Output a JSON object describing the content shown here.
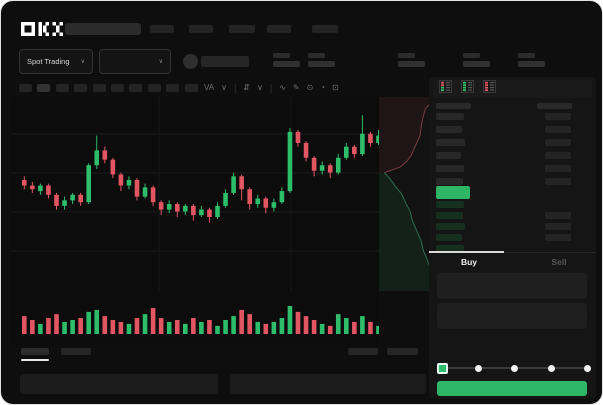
{
  "header": {
    "logo_text": "OKX",
    "nav_placeholders": [
      24,
      24,
      26,
      24,
      26
    ],
    "ticker_groups": 5
  },
  "market_selector": {
    "label": "Spot Trading",
    "chevron": "∨"
  },
  "pair_selector": {
    "chevron": "∨"
  },
  "chart_toolbar": {
    "interval_count": 10,
    "active_interval_index": 1,
    "icons": [
      {
        "name": "indicator-label",
        "glyph": "VA"
      },
      {
        "name": "chevron-down-icon",
        "glyph": "∨"
      },
      {
        "name": "toolbar-divider",
        "glyph": "|"
      },
      {
        "name": "compare-icon",
        "glyph": "⇵"
      },
      {
        "name": "chevron-down-icon",
        "glyph": "∨"
      },
      {
        "name": "toolbar-divider",
        "glyph": "|"
      },
      {
        "name": "line-type-icon",
        "glyph": "∿"
      },
      {
        "name": "draw-icon",
        "glyph": "✎"
      },
      {
        "name": "camera-icon",
        "glyph": "⊙"
      },
      {
        "name": "history-icon",
        "glyph": "◔"
      },
      {
        "name": "fullscreen-icon",
        "glyph": "⊡"
      }
    ]
  },
  "orderbook": {
    "view_modes": [
      {
        "name": "orderbook-combined-icon",
        "segments": [
          "down",
          "down",
          "up",
          "up"
        ]
      },
      {
        "name": "orderbook-bids-icon",
        "segments": [
          "up",
          "up",
          "up",
          "up"
        ]
      },
      {
        "name": "orderbook-asks-icon",
        "segments": [
          "down",
          "down",
          "down",
          "down"
        ]
      }
    ],
    "header_bars": {
      "left_width": 35,
      "right_width": 35
    },
    "asks": [
      {
        "l": 28,
        "r": 26
      },
      {
        "l": 26,
        "r": 26
      },
      {
        "l": 29,
        "r": 26
      },
      {
        "l": 25,
        "r": 26
      },
      {
        "l": 28,
        "r": 26
      },
      {
        "l": 27,
        "r": 26
      }
    ],
    "last_price_bar": {
      "color": "#2fb566",
      "width": 34
    },
    "bids": [
      {
        "l": 28,
        "r": 0
      },
      {
        "l": 27,
        "r": 26
      },
      {
        "l": 29,
        "r": 26
      },
      {
        "l": 26,
        "r": 26
      },
      {
        "l": 28,
        "r": 0
      }
    ]
  },
  "trade_panel": {
    "tabs": {
      "buy": "Buy",
      "sell": "Sell",
      "active": "buy"
    },
    "input_boxes": 2,
    "slider": {
      "stops": 5,
      "active_index": 0
    },
    "buy_button_color": "#2fb566"
  },
  "colors": {
    "up": "#2ebd6b",
    "down": "#e25563",
    "up_dim": "#16301f",
    "bar_gray": "#282828",
    "bar_gray2": "#242424"
  },
  "chart_data": {
    "type": "candlestick",
    "title": "",
    "xlabel": "",
    "ylabel": "",
    "grid": true,
    "axis_labels_visible": false,
    "price_scale": [
      0,
      100
    ],
    "candles": [
      [
        60,
        62,
        55,
        57
      ],
      [
        57,
        59,
        53,
        55
      ],
      [
        54,
        58,
        52,
        57
      ],
      [
        57,
        58,
        50,
        52
      ],
      [
        52,
        53,
        44,
        46
      ],
      [
        46,
        51,
        44,
        49
      ],
      [
        49,
        53,
        47,
        52
      ],
      [
        52,
        53,
        46,
        48
      ],
      [
        48,
        69,
        47,
        68
      ],
      [
        68,
        84,
        66,
        76
      ],
      [
        76,
        78,
        69,
        71
      ],
      [
        71,
        72,
        61,
        63
      ],
      [
        63,
        64,
        54,
        57
      ],
      [
        57,
        62,
        55,
        60
      ],
      [
        60,
        61,
        49,
        51
      ],
      [
        51,
        58,
        50,
        56
      ],
      [
        56,
        57,
        46,
        48
      ],
      [
        48,
        49,
        41,
        44
      ],
      [
        44,
        49,
        42,
        47
      ],
      [
        47,
        48,
        40,
        43
      ],
      [
        43,
        47,
        41,
        46
      ],
      [
        46,
        47,
        38,
        41
      ],
      [
        41,
        46,
        40,
        44
      ],
      [
        44,
        45,
        37,
        40
      ],
      [
        40,
        48,
        39,
        46
      ],
      [
        46,
        55,
        45,
        53
      ],
      [
        53,
        64,
        52,
        62
      ],
      [
        62,
        63,
        49,
        55
      ],
      [
        55,
        56,
        44,
        47
      ],
      [
        47,
        52,
        45,
        50
      ],
      [
        50,
        51,
        42,
        45
      ],
      [
        45,
        50,
        43,
        48
      ],
      [
        48,
        56,
        47,
        54
      ],
      [
        54,
        88,
        53,
        86
      ],
      [
        86,
        87,
        78,
        80
      ],
      [
        80,
        81,
        70,
        72
      ],
      [
        72,
        73,
        62,
        65
      ],
      [
        65,
        70,
        63,
        68
      ],
      [
        68,
        69,
        61,
        64
      ],
      [
        64,
        74,
        63,
        72
      ],
      [
        72,
        80,
        71,
        78
      ],
      [
        78,
        79,
        72,
        74
      ],
      [
        74,
        95,
        73,
        85
      ],
      [
        85,
        86,
        78,
        80
      ],
      [
        80,
        87,
        79,
        84
      ]
    ],
    "candle_format": "[open, high, low, close]",
    "volume": [
      64,
      50,
      36,
      57,
      71,
      43,
      50,
      57,
      79,
      86,
      64,
      50,
      43,
      36,
      57,
      71,
      93,
      57,
      43,
      50,
      36,
      57,
      43,
      50,
      29,
      50,
      64,
      86,
      71,
      43,
      36,
      43,
      57,
      100,
      79,
      64,
      50,
      36,
      29,
      71,
      57,
      43,
      64,
      43,
      29
    ],
    "depth": {
      "asks_points": [
        [
          100,
          2
        ],
        [
          86,
          6
        ],
        [
          80,
          12
        ],
        [
          76,
          20
        ],
        [
          66,
          26
        ],
        [
          60,
          30
        ],
        [
          52,
          33
        ],
        [
          40,
          36
        ],
        [
          10,
          39
        ]
      ],
      "bids_points": [
        [
          10,
          39
        ],
        [
          20,
          42
        ],
        [
          30,
          46
        ],
        [
          42,
          50
        ],
        [
          50,
          55
        ],
        [
          58,
          59
        ],
        [
          62,
          64
        ],
        [
          70,
          69
        ],
        [
          78,
          74
        ],
        [
          82,
          79
        ],
        [
          88,
          83
        ],
        [
          100,
          92
        ]
      ],
      "asks_line": "#7a3d44",
      "asks_fill": "rgba(190,70,80,0.08)",
      "bids_line": "#2d6e4f",
      "bids_fill": "rgba(40,160,95,0.10)"
    }
  }
}
